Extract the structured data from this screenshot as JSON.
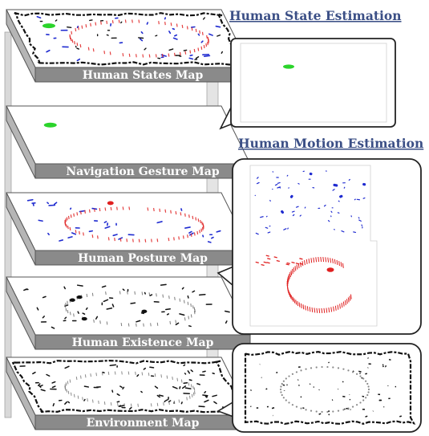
{
  "layers": [
    {
      "id": "human-states",
      "label": "Human States Map",
      "content": "combined"
    },
    {
      "id": "navigation-gesture",
      "label": "Navigation Gesture Map",
      "content": "gesture"
    },
    {
      "id": "human-posture",
      "label": "Human Posture Map",
      "content": "posture"
    },
    {
      "id": "human-existence",
      "label": "Human Existence Map",
      "content": "existence"
    },
    {
      "id": "environment",
      "label": "Environment Map",
      "content": "environment"
    }
  ],
  "callouts": {
    "state": {
      "title": "Human State Estimation"
    },
    "motion": {
      "title": "Human Motion Estimation"
    }
  },
  "colors": {
    "gesture": "#2bd42b",
    "posture_blue": "#1f2bd0",
    "posture_red": "#e02020",
    "existence": "#111111",
    "environment": "#111111",
    "layer_front": "#8a8a8a",
    "layer_side": "#b5b5b5",
    "title": "#3b4f86"
  }
}
